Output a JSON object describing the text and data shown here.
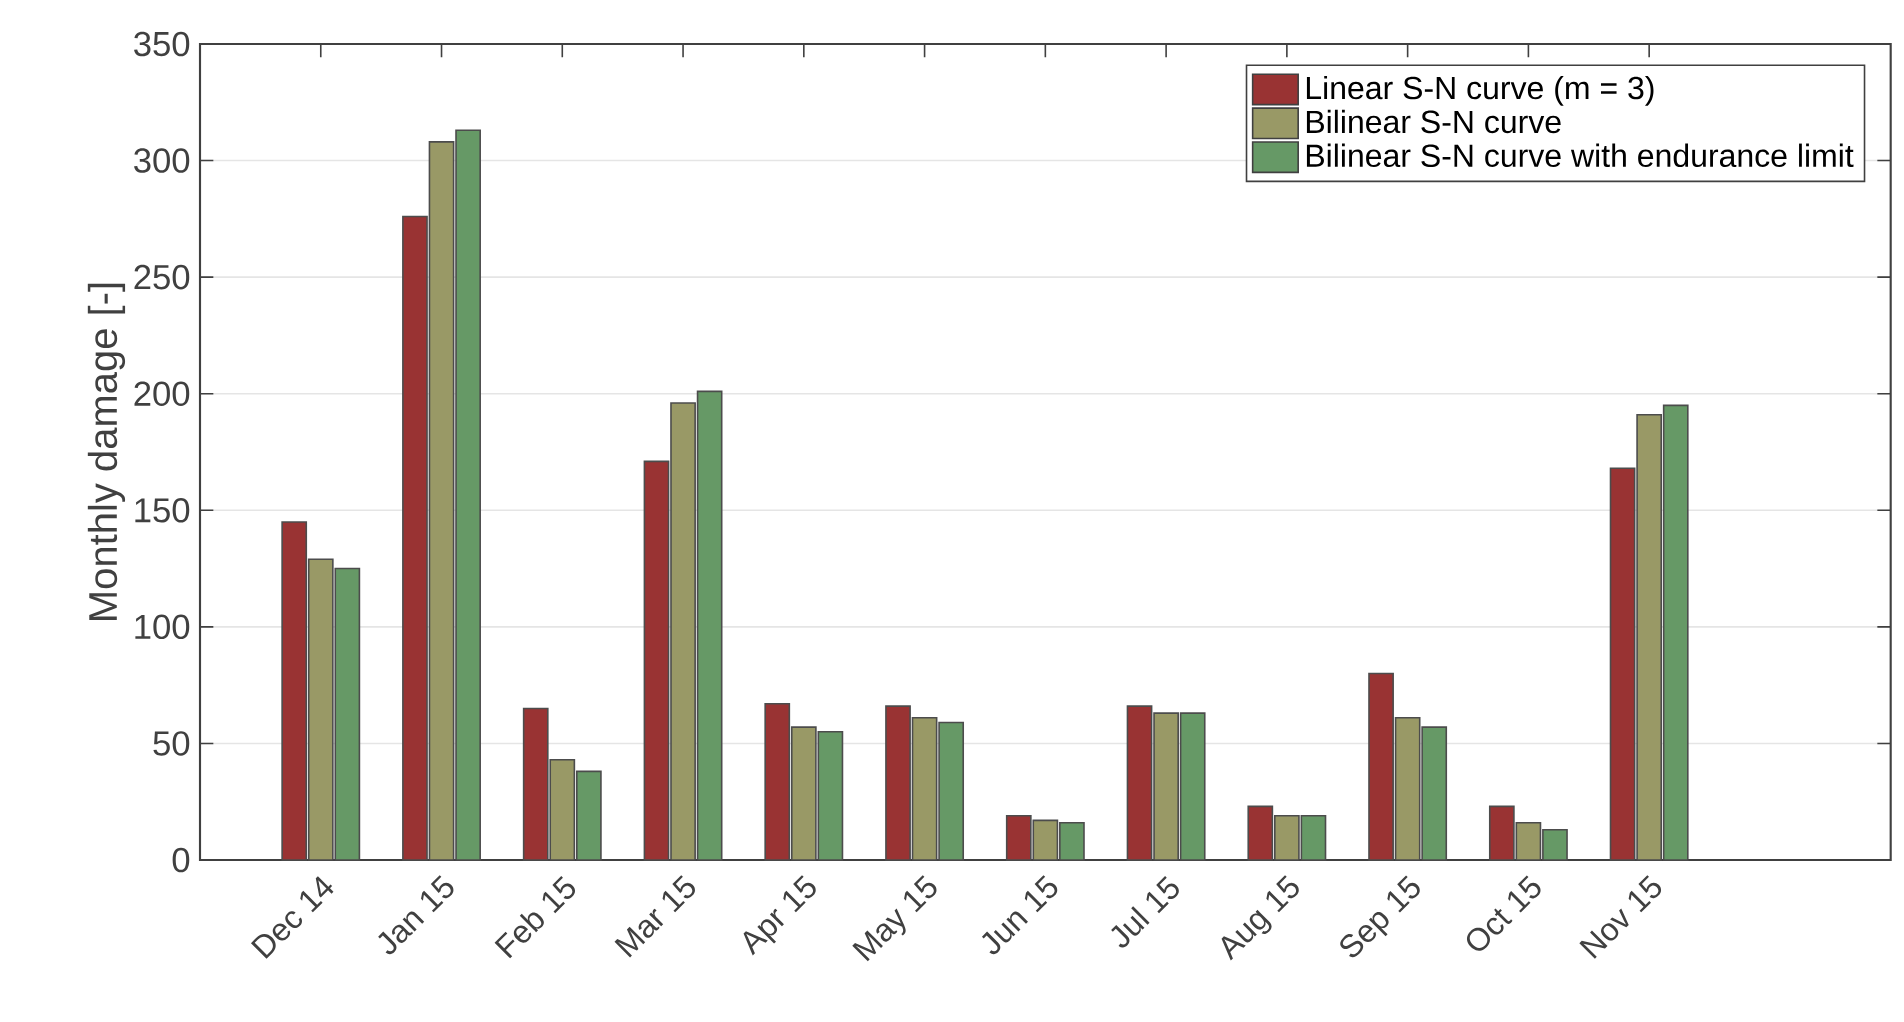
{
  "chart_data": {
    "type": "bar",
    "ylabel": "Monthly damage [-]",
    "categories": [
      "Dec 14",
      "Jan 15",
      "Feb 15",
      "Mar 15",
      "Apr 15",
      "May 15",
      "Jun 15",
      "Jul 15",
      "Aug 15",
      "Sep 15",
      "Oct 15",
      "Nov 15"
    ],
    "series": [
      {
        "name": "Linear S-N curve (m = 3)",
        "color": "#993333",
        "values": [
          145,
          276,
          65,
          171,
          67,
          66,
          19,
          66,
          23,
          80,
          23,
          168
        ]
      },
      {
        "name": "Bilinear S-N curve",
        "color": "#999966",
        "values": [
          129,
          308,
          43,
          196,
          57,
          61,
          17,
          63,
          19,
          61,
          16,
          191
        ]
      },
      {
        "name": "Bilinear S-N curve with endurance limit",
        "color": "#669966",
        "values": [
          125,
          313,
          38,
          201,
          55,
          59,
          16,
          63,
          19,
          57,
          13,
          195
        ]
      }
    ],
    "ylim": [
      0,
      350
    ],
    "yticks": [
      0,
      50,
      100,
      150,
      200,
      250,
      300,
      350
    ],
    "grid": "y",
    "legend": "top right"
  }
}
